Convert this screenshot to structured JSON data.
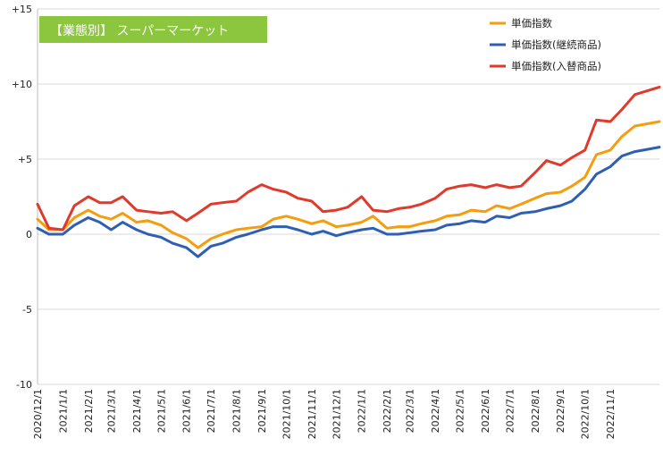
{
  "chart_data": {
    "type": "line",
    "title": "【業態別】 スーパーマーケット",
    "title_bg_color": "#8cc63f",
    "xlabel": "",
    "ylabel": "",
    "ylim": [
      -10,
      15
    ],
    "yticks": [
      -10,
      -5,
      0,
      5,
      10,
      15
    ],
    "ytick_labels": [
      "-10",
      "-5",
      "0",
      "+5",
      "+10",
      "+15"
    ],
    "xlim": [
      "2020-12-01",
      "2022-12-31"
    ],
    "xtick_labels": [
      "2020/12/1",
      "2021/1/1",
      "2021/2/1",
      "2021/3/1",
      "2021/4/1",
      "2021/5/1",
      "2021/6/1",
      "2021/7/1",
      "2021/8/1",
      "2021/9/1",
      "2021/10/1",
      "2021/11/1",
      "2021/12/1",
      "2022/1/1",
      "2022/2/1",
      "2022/3/1",
      "2022/4/1",
      "2022/5/1",
      "2022/6/1",
      "2022/7/1",
      "2022/8/1",
      "2022/9/1",
      "2022/10/1",
      "2022/11/1"
    ],
    "xtick_dates": [
      "2020-12-01",
      "2021-01-01",
      "2021-02-01",
      "2021-03-01",
      "2021-04-01",
      "2021-05-01",
      "2021-06-01",
      "2021-07-01",
      "2021-08-01",
      "2021-09-01",
      "2021-10-01",
      "2021-11-01",
      "2021-12-01",
      "2022-01-01",
      "2022-02-01",
      "2022-03-01",
      "2022-04-01",
      "2022-05-01",
      "2022-06-01",
      "2022-07-01",
      "2022-08-01",
      "2022-09-01",
      "2022-10-01",
      "2022-11-01"
    ],
    "grid": "horizontal",
    "legend_position": "top-right",
    "x": [
      "2020-12-01",
      "2020-12-15",
      "2021-01-01",
      "2021-01-15",
      "2021-02-01",
      "2021-02-15",
      "2021-03-01",
      "2021-03-15",
      "2021-04-01",
      "2021-04-15",
      "2021-05-01",
      "2021-05-15",
      "2021-06-01",
      "2021-06-15",
      "2021-07-01",
      "2021-07-15",
      "2021-08-01",
      "2021-08-15",
      "2021-09-01",
      "2021-09-15",
      "2021-10-01",
      "2021-10-15",
      "2021-11-01",
      "2021-11-15",
      "2021-12-01",
      "2021-12-15",
      "2022-01-01",
      "2022-01-15",
      "2022-02-01",
      "2022-02-15",
      "2022-03-01",
      "2022-03-15",
      "2022-04-01",
      "2022-04-15",
      "2022-05-01",
      "2022-05-15",
      "2022-06-01",
      "2022-06-15",
      "2022-07-01",
      "2022-07-15",
      "2022-08-01",
      "2022-08-15",
      "2022-09-01",
      "2022-09-15",
      "2022-10-01",
      "2022-10-15",
      "2022-11-01",
      "2022-11-15",
      "2022-12-01",
      "2022-12-31"
    ],
    "series": [
      {
        "name": "単価指数",
        "color": "#f59d0e",
        "values": [
          1.0,
          0.3,
          0.3,
          1.1,
          1.6,
          1.2,
          1.0,
          1.4,
          0.8,
          0.9,
          0.6,
          0.1,
          -0.3,
          -0.9,
          -0.3,
          0.0,
          0.3,
          0.4,
          0.5,
          1.0,
          1.2,
          1.0,
          0.7,
          0.9,
          0.5,
          0.6,
          0.8,
          1.2,
          0.4,
          0.5,
          0.5,
          0.7,
          0.9,
          1.2,
          1.3,
          1.6,
          1.5,
          1.9,
          1.7,
          2.0,
          2.4,
          2.7,
          2.8,
          3.2,
          3.8,
          5.3,
          5.6,
          6.5,
          7.2,
          7.5
        ]
      },
      {
        "name": "単価指数(継続商品)",
        "color": "#2f5fb3",
        "values": [
          0.4,
          0.0,
          0.0,
          0.6,
          1.1,
          0.8,
          0.3,
          0.8,
          0.3,
          0.0,
          -0.2,
          -0.6,
          -0.9,
          -1.5,
          -0.8,
          -0.6,
          -0.2,
          0.0,
          0.3,
          0.5,
          0.5,
          0.3,
          0.0,
          0.2,
          -0.1,
          0.1,
          0.3,
          0.4,
          0.0,
          0.0,
          0.1,
          0.2,
          0.3,
          0.6,
          0.7,
          0.9,
          0.8,
          1.2,
          1.1,
          1.4,
          1.5,
          1.7,
          1.9,
          2.2,
          3.0,
          4.0,
          4.5,
          5.2,
          5.5,
          5.8
        ]
      },
      {
        "name": "単価指数(入替商品)",
        "color": "#e03a2c",
        "values": [
          2.0,
          0.4,
          0.3,
          1.9,
          2.5,
          2.1,
          2.1,
          2.5,
          1.6,
          1.5,
          1.4,
          1.5,
          0.9,
          1.4,
          2.0,
          2.1,
          2.2,
          2.8,
          3.3,
          3.0,
          2.8,
          2.4,
          2.2,
          1.5,
          1.6,
          1.8,
          2.5,
          1.6,
          1.5,
          1.7,
          1.8,
          2.0,
          2.4,
          3.0,
          3.2,
          3.3,
          3.1,
          3.3,
          3.1,
          3.2,
          4.1,
          4.9,
          4.6,
          5.1,
          5.6,
          7.6,
          7.5,
          8.3,
          9.3,
          9.8
        ]
      }
    ]
  }
}
